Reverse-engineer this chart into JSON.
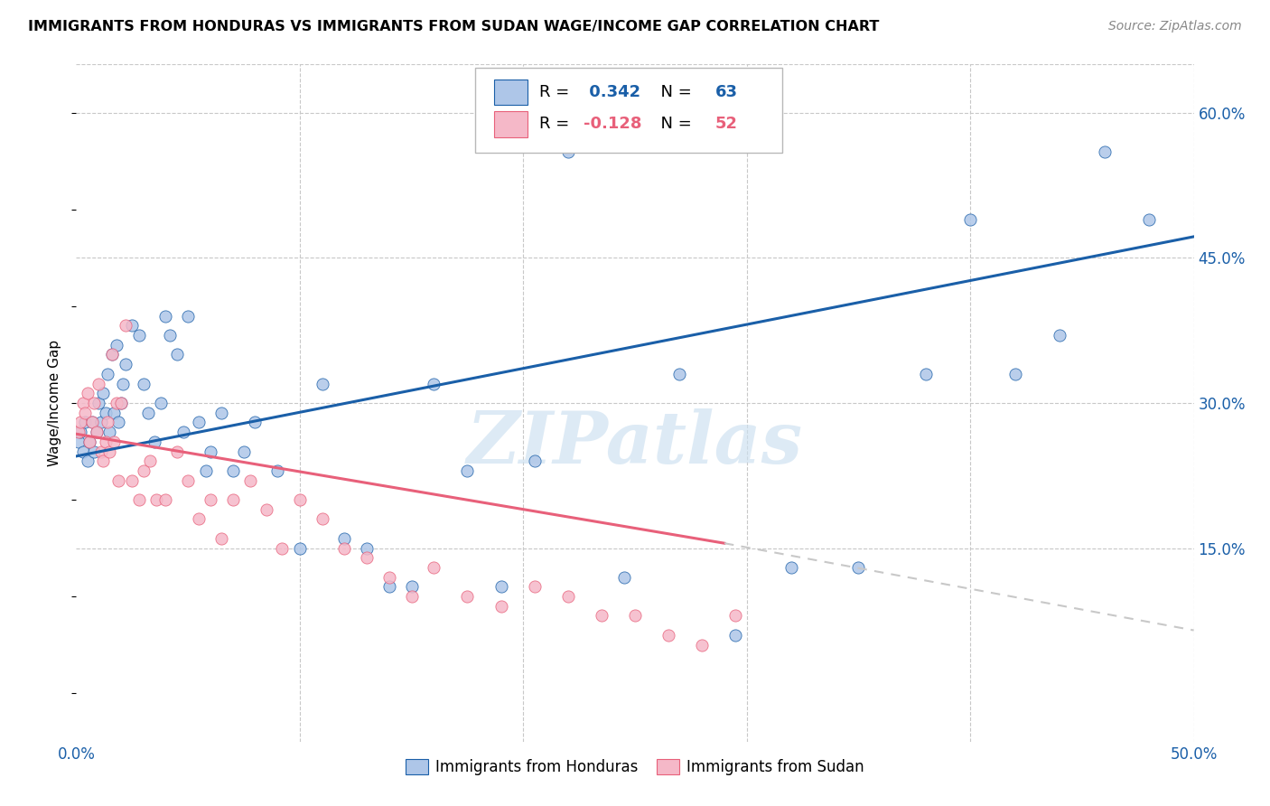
{
  "title": "IMMIGRANTS FROM HONDURAS VS IMMIGRANTS FROM SUDAN WAGE/INCOME GAP CORRELATION CHART",
  "source": "Source: ZipAtlas.com",
  "ylabel": "Wage/Income Gap",
  "xlim": [
    0.0,
    0.5
  ],
  "ylim": [
    -0.05,
    0.65
  ],
  "R_honduras": 0.342,
  "N_honduras": 63,
  "R_sudan": -0.128,
  "N_sudan": 52,
  "color_honduras": "#aec6e8",
  "color_sudan": "#f5b8c8",
  "line_honduras_color": "#1a5fa8",
  "line_sudan_color": "#e8607a",
  "line_sudan_dash_color": "#c8c8c8",
  "watermark": "ZIPatlas",
  "legend_label_honduras": "Immigrants from Honduras",
  "legend_label_sudan": "Immigrants from Sudan",
  "honduras_x": [
    0.001,
    0.002,
    0.003,
    0.004,
    0.005,
    0.006,
    0.007,
    0.008,
    0.009,
    0.01,
    0.011,
    0.012,
    0.013,
    0.014,
    0.015,
    0.016,
    0.017,
    0.018,
    0.019,
    0.02,
    0.021,
    0.022,
    0.025,
    0.028,
    0.03,
    0.032,
    0.035,
    0.038,
    0.04,
    0.042,
    0.045,
    0.048,
    0.05,
    0.055,
    0.058,
    0.06,
    0.065,
    0.07,
    0.075,
    0.08,
    0.09,
    0.1,
    0.11,
    0.12,
    0.13,
    0.14,
    0.15,
    0.16,
    0.175,
    0.19,
    0.205,
    0.22,
    0.245,
    0.27,
    0.295,
    0.32,
    0.35,
    0.38,
    0.4,
    0.42,
    0.44,
    0.46,
    0.48
  ],
  "honduras_y": [
    0.26,
    0.27,
    0.25,
    0.28,
    0.24,
    0.26,
    0.28,
    0.25,
    0.27,
    0.3,
    0.28,
    0.31,
    0.29,
    0.33,
    0.27,
    0.35,
    0.29,
    0.36,
    0.28,
    0.3,
    0.32,
    0.34,
    0.38,
    0.37,
    0.32,
    0.29,
    0.26,
    0.3,
    0.39,
    0.37,
    0.35,
    0.27,
    0.39,
    0.28,
    0.23,
    0.25,
    0.29,
    0.23,
    0.25,
    0.28,
    0.23,
    0.15,
    0.32,
    0.16,
    0.15,
    0.11,
    0.11,
    0.32,
    0.23,
    0.11,
    0.24,
    0.56,
    0.12,
    0.33,
    0.06,
    0.13,
    0.13,
    0.33,
    0.49,
    0.33,
    0.37,
    0.56,
    0.49
  ],
  "sudan_x": [
    0.001,
    0.002,
    0.003,
    0.004,
    0.005,
    0.006,
    0.007,
    0.008,
    0.009,
    0.01,
    0.011,
    0.012,
    0.013,
    0.014,
    0.015,
    0.016,
    0.017,
    0.018,
    0.019,
    0.02,
    0.022,
    0.025,
    0.028,
    0.03,
    0.033,
    0.036,
    0.04,
    0.045,
    0.05,
    0.055,
    0.06,
    0.065,
    0.07,
    0.078,
    0.085,
    0.092,
    0.1,
    0.11,
    0.12,
    0.13,
    0.14,
    0.15,
    0.16,
    0.175,
    0.19,
    0.205,
    0.22,
    0.235,
    0.25,
    0.265,
    0.28,
    0.295
  ],
  "sudan_y": [
    0.27,
    0.28,
    0.3,
    0.29,
    0.31,
    0.26,
    0.28,
    0.3,
    0.27,
    0.32,
    0.25,
    0.24,
    0.26,
    0.28,
    0.25,
    0.35,
    0.26,
    0.3,
    0.22,
    0.3,
    0.38,
    0.22,
    0.2,
    0.23,
    0.24,
    0.2,
    0.2,
    0.25,
    0.22,
    0.18,
    0.2,
    0.16,
    0.2,
    0.22,
    0.19,
    0.15,
    0.2,
    0.18,
    0.15,
    0.14,
    0.12,
    0.1,
    0.13,
    0.1,
    0.09,
    0.11,
    0.1,
    0.08,
    0.08,
    0.06,
    0.05,
    0.08
  ],
  "trendline_h_x0": 0.0,
  "trendline_h_y0": 0.245,
  "trendline_h_x1": 0.5,
  "trendline_h_y1": 0.472,
  "trendline_s_x0": 0.0,
  "trendline_s_y0": 0.268,
  "trendline_s_xsolid": 0.29,
  "trendline_s_ysolid": 0.155,
  "trendline_s_x1": 0.5,
  "trendline_s_y1": 0.065
}
